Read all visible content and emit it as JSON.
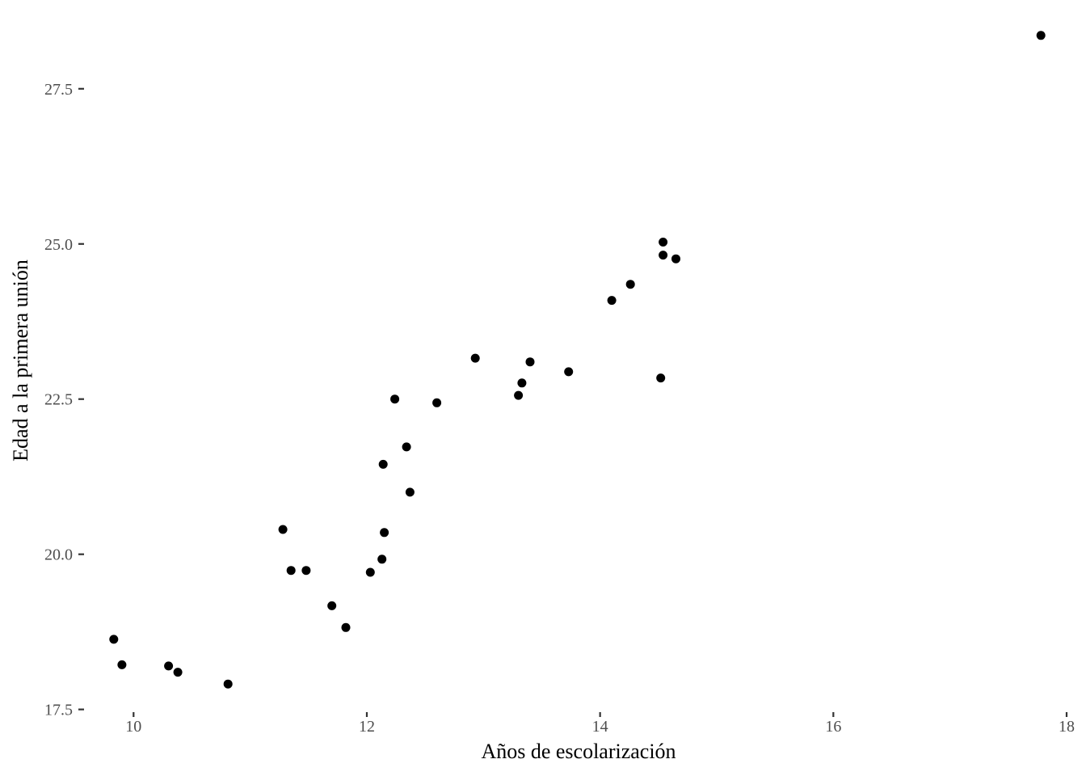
{
  "chart_data": {
    "type": "scatter",
    "xlabel": "Años de escolarización",
    "ylabel": "Edad a la primera unión",
    "xlim": [
      9.7,
      18.0
    ],
    "ylim": [
      17.3,
      28.8
    ],
    "x_ticks": [
      10,
      12,
      14,
      16,
      18
    ],
    "x_tick_labels": [
      "10",
      "12",
      "14",
      "16",
      "18"
    ],
    "y_ticks": [
      17.5,
      20.0,
      22.5,
      25.0,
      27.5
    ],
    "y_tick_labels": [
      "17.5",
      "20.0",
      "22.5",
      "25.0",
      "27.5"
    ],
    "grid": false,
    "point_color": "#000000",
    "points": [
      {
        "x": 9.83,
        "y": 18.63
      },
      {
        "x": 9.9,
        "y": 18.22
      },
      {
        "x": 10.3,
        "y": 18.2
      },
      {
        "x": 10.38,
        "y": 18.1
      },
      {
        "x": 10.81,
        "y": 17.91
      },
      {
        "x": 11.28,
        "y": 20.4
      },
      {
        "x": 11.35,
        "y": 19.74
      },
      {
        "x": 11.48,
        "y": 19.74
      },
      {
        "x": 11.7,
        "y": 19.17
      },
      {
        "x": 11.82,
        "y": 18.82
      },
      {
        "x": 12.03,
        "y": 19.71
      },
      {
        "x": 12.13,
        "y": 19.92
      },
      {
        "x": 12.14,
        "y": 21.45
      },
      {
        "x": 12.15,
        "y": 20.35
      },
      {
        "x": 12.24,
        "y": 22.5
      },
      {
        "x": 12.34,
        "y": 21.73
      },
      {
        "x": 12.37,
        "y": 21.0
      },
      {
        "x": 12.6,
        "y": 22.44
      },
      {
        "x": 12.93,
        "y": 23.16
      },
      {
        "x": 13.3,
        "y": 22.56
      },
      {
        "x": 13.33,
        "y": 22.76
      },
      {
        "x": 13.4,
        "y": 23.1
      },
      {
        "x": 13.73,
        "y": 22.94
      },
      {
        "x": 14.1,
        "y": 24.09
      },
      {
        "x": 14.26,
        "y": 24.35
      },
      {
        "x": 14.52,
        "y": 22.84
      },
      {
        "x": 14.54,
        "y": 25.03
      },
      {
        "x": 14.54,
        "y": 24.82
      },
      {
        "x": 14.65,
        "y": 24.76
      },
      {
        "x": 17.78,
        "y": 28.36
      }
    ]
  }
}
